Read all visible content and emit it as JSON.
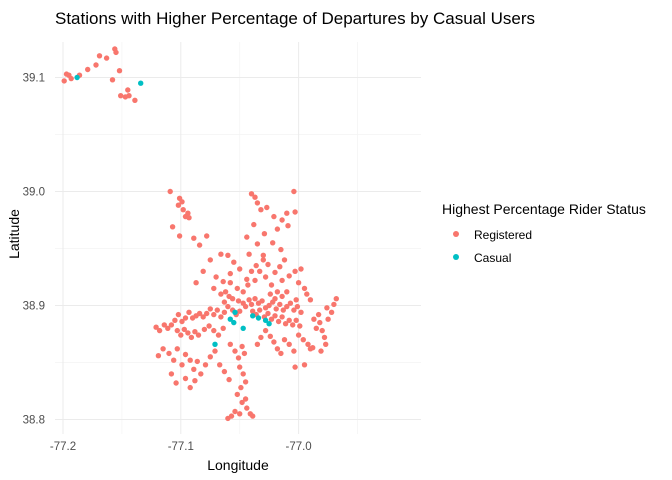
{
  "chart_data": {
    "type": "scatter",
    "title": "Stations with Higher Percentage of Departures by Casual Users",
    "xlabel": "Longitude",
    "ylabel": "Latitude",
    "xlim": [
      -77.205,
      -76.97
    ],
    "ylim": [
      38.795,
      39.125
    ],
    "x_ticks": [
      -77.2,
      -77.1,
      -77.0
    ],
    "x_tick_labels": [
      "-77.2",
      "-77.1",
      "-77.0"
    ],
    "y_ticks": [
      38.8,
      38.9,
      39.0,
      39.1
    ],
    "y_tick_labels": [
      "38.8",
      "38.9",
      "39.0",
      "39.1"
    ],
    "grid": true,
    "legend": {
      "title": "Highest Percentage Rider Status",
      "position": "right",
      "entries": [
        {
          "label": "Registered",
          "color": "#F8766D"
        },
        {
          "label": "Casual",
          "color": "#00BFC4"
        }
      ]
    },
    "series": [
      {
        "name": "Registered",
        "color": "#F8766D",
        "points": [
          [
            -77.199,
            39.097
          ],
          [
            -77.197,
            39.103
          ],
          [
            -77.195,
            39.102
          ],
          [
            -77.193,
            39.099
          ],
          [
            -77.186,
            39.102
          ],
          [
            -77.179,
            39.107
          ],
          [
            -77.172,
            39.111
          ],
          [
            -77.169,
            39.119
          ],
          [
            -77.163,
            39.117
          ],
          [
            -77.156,
            39.125
          ],
          [
            -77.155,
            39.122
          ],
          [
            -77.158,
            39.098
          ],
          [
            -77.152,
            39.106
          ],
          [
            -77.151,
            39.084
          ],
          [
            -77.147,
            39.083
          ],
          [
            -77.145,
            39.089
          ],
          [
            -77.144,
            39.084
          ],
          [
            -77.139,
            39.08
          ],
          [
            -77.109,
            39.0
          ],
          [
            -77.102,
            38.988
          ],
          [
            -77.101,
            38.994
          ],
          [
            -77.099,
            38.991
          ],
          [
            -77.098,
            38.984
          ],
          [
            -77.096,
            38.978
          ],
          [
            -77.094,
            38.981
          ],
          [
            -77.093,
            38.977
          ],
          [
            -77.107,
            38.969
          ],
          [
            -77.101,
            38.961
          ],
          [
            -77.089,
            38.959
          ],
          [
            -77.078,
            38.961
          ],
          [
            -77.084,
            38.953
          ],
          [
            -77.04,
            38.998
          ],
          [
            -77.037,
            38.995
          ],
          [
            -77.035,
            38.99
          ],
          [
            -77.032,
            38.984
          ],
          [
            -77.027,
            38.986
          ],
          [
            -77.021,
            38.978
          ],
          [
            -77.014,
            38.975
          ],
          [
            -77.01,
            38.981
          ],
          [
            -77.004,
            39.0
          ],
          [
            -77.003,
            38.982
          ],
          [
            -77.009,
            38.97
          ],
          [
            -77.018,
            38.967
          ],
          [
            -77.029,
            38.963
          ],
          [
            -77.038,
            38.971
          ],
          [
            -77.044,
            38.96
          ],
          [
            -77.035,
            38.954
          ],
          [
            -77.042,
            38.945
          ],
          [
            -77.03,
            38.94
          ],
          [
            -77.022,
            38.955
          ],
          [
            -77.015,
            38.949
          ],
          [
            -77.012,
            38.94
          ],
          [
            -77.066,
            38.945
          ],
          [
            -77.06,
            38.944
          ],
          [
            -77.055,
            38.938
          ],
          [
            -77.05,
            38.932
          ],
          [
            -77.058,
            38.928
          ],
          [
            -77.064,
            38.921
          ],
          [
            -77.07,
            38.925
          ],
          [
            -77.075,
            38.94
          ],
          [
            -77.081,
            38.93
          ],
          [
            -77.087,
            38.92
          ],
          [
            -77.072,
            38.915
          ],
          [
            -77.066,
            38.91
          ],
          [
            -77.063,
            38.903
          ],
          [
            -77.058,
            38.92
          ],
          [
            -77.052,
            38.915
          ],
          [
            -77.047,
            38.912
          ],
          [
            -77.043,
            38.918
          ],
          [
            -77.037,
            38.922
          ],
          [
            -77.033,
            38.93
          ],
          [
            -77.028,
            38.925
          ],
          [
            -77.023,
            38.918
          ],
          [
            -77.018,
            38.912
          ],
          [
            -77.014,
            38.922
          ],
          [
            -77.008,
            38.926
          ],
          [
            -77.003,
            38.93
          ],
          [
            -76.998,
            38.932
          ],
          [
            -77.0,
            38.92
          ],
          [
            -76.995,
            38.915
          ],
          [
            -76.993,
            38.91
          ],
          [
            -76.99,
            38.905
          ],
          [
            -77.002,
            38.905
          ],
          [
            -77.056,
            38.906
          ],
          [
            -77.051,
            38.904
          ],
          [
            -77.047,
            38.902
          ],
          [
            -77.045,
            38.899
          ],
          [
            -77.042,
            38.905
          ],
          [
            -77.04,
            38.901
          ],
          [
            -77.037,
            38.906
          ],
          [
            -77.034,
            38.902
          ],
          [
            -77.031,
            38.904
          ],
          [
            -77.028,
            38.898
          ],
          [
            -77.025,
            38.9
          ],
          [
            -77.022,
            38.903
          ],
          [
            -77.019,
            38.897
          ],
          [
            -77.016,
            38.901
          ],
          [
            -77.013,
            38.896
          ],
          [
            -77.01,
            38.899
          ],
          [
            -77.007,
            38.902
          ],
          [
            -77.004,
            38.896
          ],
          [
            -77.001,
            38.899
          ],
          [
            -76.998,
            38.894
          ],
          [
            -77.056,
            38.896
          ],
          [
            -77.053,
            38.892
          ],
          [
            -77.05,
            38.895
          ],
          [
            -77.039,
            38.895
          ],
          [
            -77.036,
            38.892
          ],
          [
            -77.033,
            38.896
          ],
          [
            -77.029,
            38.89
          ],
          [
            -77.026,
            38.893
          ],
          [
            -77.023,
            38.888
          ],
          [
            -77.02,
            38.891
          ],
          [
            -77.017,
            38.886
          ],
          [
            -77.014,
            38.89
          ],
          [
            -77.011,
            38.884
          ],
          [
            -77.008,
            38.887
          ],
          [
            -77.005,
            38.883
          ],
          [
            -77.002,
            38.887
          ],
          [
            -76.999,
            38.882
          ],
          [
            -77.06,
            38.899
          ],
          [
            -77.063,
            38.894
          ],
          [
            -77.066,
            38.89
          ],
          [
            -77.069,
            38.896
          ],
          [
            -77.072,
            38.892
          ],
          [
            -77.075,
            38.897
          ],
          [
            -77.078,
            38.893
          ],
          [
            -77.081,
            38.89
          ],
          [
            -77.084,
            38.893
          ],
          [
            -77.087,
            38.891
          ],
          [
            -77.09,
            38.889
          ],
          [
            -77.093,
            38.894
          ],
          [
            -77.096,
            38.889
          ],
          [
            -77.099,
            38.886
          ],
          [
            -77.102,
            38.892
          ],
          [
            -77.105,
            38.887
          ],
          [
            -77.108,
            38.883
          ],
          [
            -77.111,
            38.88
          ],
          [
            -77.114,
            38.883
          ],
          [
            -77.118,
            38.878
          ],
          [
            -77.121,
            38.881
          ],
          [
            -77.103,
            38.878
          ],
          [
            -77.1,
            38.874
          ],
          [
            -77.097,
            38.879
          ],
          [
            -77.094,
            38.876
          ],
          [
            -77.091,
            38.872
          ],
          [
            -77.088,
            38.877
          ],
          [
            -77.085,
            38.874
          ],
          [
            -77.08,
            38.879
          ],
          [
            -77.076,
            38.882
          ],
          [
            -77.072,
            38.878
          ],
          [
            -77.068,
            38.874
          ],
          [
            -77.064,
            38.88
          ],
          [
            -77.119,
            38.856
          ],
          [
            -77.115,
            38.862
          ],
          [
            -77.11,
            38.858
          ],
          [
            -77.106,
            38.852
          ],
          [
            -77.103,
            38.862
          ],
          [
            -77.099,
            38.848
          ],
          [
            -77.096,
            38.857
          ],
          [
            -77.092,
            38.852
          ],
          [
            -77.089,
            38.844
          ],
          [
            -77.086,
            38.851
          ],
          [
            -77.083,
            38.84
          ],
          [
            -77.079,
            38.848
          ],
          [
            -77.075,
            38.855
          ],
          [
            -77.071,
            38.86
          ],
          [
            -77.067,
            38.848
          ],
          [
            -77.063,
            38.842
          ],
          [
            -77.059,
            38.835
          ],
          [
            -77.108,
            38.84
          ],
          [
            -77.104,
            38.832
          ],
          [
            -77.096,
            38.836
          ],
          [
            -77.092,
            38.828
          ],
          [
            -77.088,
            38.834
          ],
          [
            -77.058,
            38.866
          ],
          [
            -77.054,
            38.86
          ],
          [
            -77.051,
            38.854
          ],
          [
            -77.048,
            38.864
          ],
          [
            -77.046,
            38.858
          ],
          [
            -77.05,
            38.846
          ],
          [
            -77.047,
            38.84
          ],
          [
            -77.045,
            38.833
          ],
          [
            -77.049,
            38.828
          ],
          [
            -77.052,
            38.822
          ],
          [
            -77.048,
            38.815
          ],
          [
            -77.045,
            38.818
          ],
          [
            -77.044,
            38.81
          ],
          [
            -77.05,
            38.805
          ],
          [
            -77.054,
            38.807
          ],
          [
            -77.057,
            38.803
          ],
          [
            -77.06,
            38.801
          ],
          [
            -77.041,
            38.805
          ],
          [
            -77.039,
            38.803
          ],
          [
            -77.035,
            38.866
          ],
          [
            -77.032,
            38.872
          ],
          [
            -77.028,
            38.878
          ],
          [
            -77.024,
            38.873
          ],
          [
            -77.021,
            38.868
          ],
          [
            -77.018,
            38.862
          ],
          [
            -77.015,
            38.858
          ],
          [
            -77.012,
            38.87
          ],
          [
            -77.008,
            38.866
          ],
          [
            -77.004,
            38.86
          ],
          [
            -77.0,
            38.874
          ],
          [
            -76.996,
            38.87
          ],
          [
            -76.992,
            38.866
          ],
          [
            -76.988,
            38.863
          ],
          [
            -77.003,
            38.846
          ],
          [
            -76.995,
            38.848
          ],
          [
            -76.99,
            38.862
          ],
          [
            -76.985,
            38.88
          ],
          [
            -76.982,
            38.885
          ],
          [
            -76.98,
            38.878
          ],
          [
            -76.978,
            38.872
          ],
          [
            -76.975,
            38.888
          ],
          [
            -76.972,
            38.894
          ],
          [
            -76.97,
            38.901
          ],
          [
            -76.968,
            38.906
          ],
          [
            -76.976,
            38.898
          ],
          [
            -76.983,
            38.892
          ],
          [
            -76.987,
            38.888
          ],
          [
            -76.981,
            38.86
          ],
          [
            -76.977,
            38.866
          ],
          [
            -77.062,
            38.912
          ],
          [
            -77.059,
            38.908
          ],
          [
            -77.044,
            38.923
          ],
          [
            -77.04,
            38.93
          ],
          [
            -77.036,
            38.935
          ],
          [
            -77.03,
            38.944
          ],
          [
            -77.026,
            38.936
          ],
          [
            -77.02,
            38.929
          ],
          [
            -77.016,
            38.934
          ],
          [
            -77.024,
            38.91
          ],
          [
            -77.02,
            38.906
          ],
          [
            -77.014,
            38.908
          ],
          [
            -77.01,
            38.912
          ]
        ]
      },
      {
        "name": "Casual",
        "color": "#00BFC4",
        "points": [
          [
            -77.188,
            39.1
          ],
          [
            -77.134,
            39.095
          ],
          [
            -77.058,
            38.888
          ],
          [
            -77.055,
            38.885
          ],
          [
            -77.054,
            38.894
          ],
          [
            -77.047,
            38.88
          ],
          [
            -77.039,
            38.891
          ],
          [
            -77.034,
            38.889
          ],
          [
            -77.028,
            38.887
          ],
          [
            -77.025,
            38.884
          ],
          [
            -77.071,
            38.866
          ]
        ]
      }
    ]
  }
}
